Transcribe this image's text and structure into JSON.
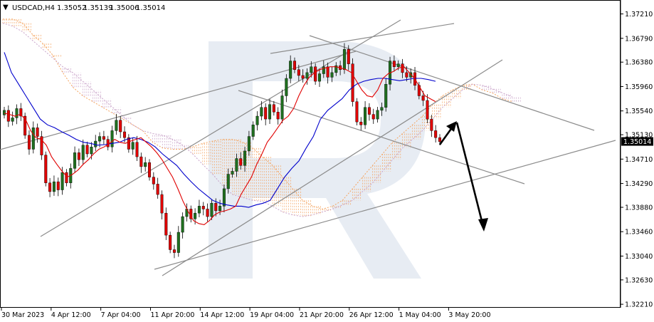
{
  "header": {
    "marker": "▼",
    "symbol": "USDCAD,H4",
    "open": "1.35052",
    "high": "1.35139",
    "low": "1.35006",
    "close": "1.35014"
  },
  "chart_data": {
    "type": "candlestick",
    "title": "USDCAD,H4",
    "ylim": [
      1.3215,
      1.3745
    ],
    "y_ticks": [
      "1.37210",
      "1.36790",
      "1.36380",
      "1.35960",
      "1.35540",
      "1.35130",
      "1.34710",
      "1.34290",
      "1.33880",
      "1.33460",
      "1.33040",
      "1.32630",
      "1.32210"
    ],
    "current_price": "1.35014",
    "x_ticks": [
      "30 Mar 2023",
      "4 Apr 12:00",
      "7 Apr 04:00",
      "11 Apr 20:00",
      "14 Apr 12:00",
      "19 Apr 04:00",
      "21 Apr 20:00",
      "26 Apr 12:00",
      "1 May 04:00",
      "3 May 20:00"
    ],
    "grid": false,
    "colors": {
      "bull": "#1f6f1f",
      "bear": "#e00000",
      "tenkan": "#e00000",
      "kijun": "#0000cc",
      "cloud_a": "#f4a460",
      "cloud_b": "#c8a2c8",
      "trend": "#8c8c8c",
      "arrow": "#000000",
      "price_label_bg": "#000000"
    },
    "close_path": [
      1.3555,
      1.3536,
      1.3542,
      1.3558,
      1.3545,
      1.3512,
      1.3488,
      1.3525,
      1.351,
      1.3478,
      1.343,
      1.3415,
      1.3432,
      1.3418,
      1.3448,
      1.343,
      1.3455,
      1.3482,
      1.347,
      1.3495,
      1.348,
      1.3492,
      1.3502,
      1.351,
      1.3505,
      1.3492,
      1.352,
      1.3538,
      1.3518,
      1.3508,
      1.3488,
      1.35,
      1.3475,
      1.3458,
      1.3465,
      1.344,
      1.3428,
      1.341,
      1.3378,
      1.334,
      1.3315,
      1.331,
      1.3345,
      1.3372,
      1.3385,
      1.3368,
      1.3378,
      1.339,
      1.3385,
      1.3372,
      1.3395,
      1.3382,
      1.339,
      1.342,
      1.3445,
      1.345,
      1.3472,
      1.346,
      1.3485,
      1.351,
      1.353,
      1.3545,
      1.356,
      1.354,
      1.3565,
      1.3552,
      1.354,
      1.358,
      1.361,
      1.364,
      1.3625,
      1.3615,
      1.361,
      1.362,
      1.363,
      1.3605,
      1.3618,
      1.363,
      1.3612,
      1.362,
      1.3632,
      1.3625,
      1.366,
      1.3635,
      1.357,
      1.3535,
      1.353,
      1.356,
      1.3548,
      1.354,
      1.3555,
      1.356,
      1.36,
      1.364,
      1.363,
      1.3635,
      1.362,
      1.3612,
      1.362,
      1.3598,
      1.358,
      1.3572,
      1.354,
      1.352,
      1.3508,
      1.3501
    ],
    "tenkan": [
      1.355,
      1.3548,
      1.3545,
      1.3548,
      1.354,
      1.352,
      1.3508,
      1.3505,
      1.3495,
      1.3475,
      1.3462,
      1.345,
      1.344,
      1.3445,
      1.3452,
      1.3462,
      1.347,
      1.348,
      1.3488,
      1.3492,
      1.3498,
      1.3505,
      1.35,
      1.3498,
      1.3502,
      1.3505,
      1.3508,
      1.35,
      1.3492,
      1.3482,
      1.347,
      1.3455,
      1.344,
      1.342,
      1.3398,
      1.338,
      1.3365,
      1.336,
      1.3358,
      1.3365,
      1.3375,
      1.338,
      1.3382,
      1.3385,
      1.339,
      1.341,
      1.3425,
      1.344,
      1.3462,
      1.348,
      1.35,
      1.3512,
      1.3525,
      1.3538,
      1.3545,
      1.3558,
      1.358,
      1.3598,
      1.3612,
      1.362,
      1.3625,
      1.3628,
      1.363,
      1.363,
      1.3628,
      1.3625,
      1.362,
      1.3605,
      1.359,
      1.358,
      1.3578,
      1.359,
      1.361,
      1.3618,
      1.3622,
      1.3628,
      1.363,
      1.362,
      1.361,
      1.3595,
      1.358,
      1.3575,
      1.357
    ],
    "kijun": [
      1.3655,
      1.362,
      1.36,
      1.358,
      1.356,
      1.354,
      1.353,
      1.3525,
      1.3518,
      1.3512,
      1.3505,
      1.35,
      1.3498,
      1.3495,
      1.3496,
      1.3498,
      1.35,
      1.3505,
      1.3508,
      1.3505,
      1.35,
      1.3492,
      1.348,
      1.347,
      1.346,
      1.3445,
      1.3432,
      1.342,
      1.341,
      1.34,
      1.3395,
      1.3392,
      1.339,
      1.339,
      1.3388,
      1.3392,
      1.3395,
      1.34,
      1.342,
      1.344,
      1.3455,
      1.3468,
      1.349,
      1.351,
      1.354,
      1.3555,
      1.3565,
      1.3575,
      1.359,
      1.36,
      1.3605,
      1.3608,
      1.361,
      1.361,
      1.3608,
      1.3606,
      1.3608,
      1.361,
      1.361,
      1.3608,
      1.3605
    ],
    "cloud": {
      "span_a": [
        1.3712,
        1.3712,
        1.3705,
        1.3685,
        1.367,
        1.365,
        1.362,
        1.3595,
        1.358,
        1.357,
        1.356,
        1.355,
        1.354,
        1.353,
        1.352,
        1.35,
        1.349,
        1.3488,
        1.3488,
        1.3492,
        1.3498,
        1.3502,
        1.3505,
        1.3505,
        1.35,
        1.349,
        1.3475,
        1.346,
        1.344,
        1.342,
        1.34,
        1.339,
        1.3385,
        1.339,
        1.34,
        1.342,
        1.344,
        1.346,
        1.348,
        1.35,
        1.3515,
        1.353,
        1.3545,
        1.3565,
        1.358,
        1.359,
        1.3598,
        1.36,
        1.359,
        1.3585,
        1.3575,
        1.357
      ],
      "span_b": [
        1.3705,
        1.37,
        1.369,
        1.3675,
        1.366,
        1.3645,
        1.363,
        1.362,
        1.3605,
        1.359,
        1.3575,
        1.356,
        1.3545,
        1.353,
        1.352,
        1.3515,
        1.3512,
        1.3505,
        1.3495,
        1.348,
        1.3462,
        1.3445,
        1.3425,
        1.341,
        1.3405,
        1.34,
        1.3398,
        1.339,
        1.338,
        1.3375,
        1.3372,
        1.3375,
        1.338,
        1.3385,
        1.3392,
        1.34,
        1.3415,
        1.343,
        1.345,
        1.347,
        1.349,
        1.3505,
        1.352,
        1.354,
        1.356,
        1.3575,
        1.359,
        1.36,
        1.3598,
        1.3592,
        1.3585,
        1.3578
      ]
    }
  }
}
